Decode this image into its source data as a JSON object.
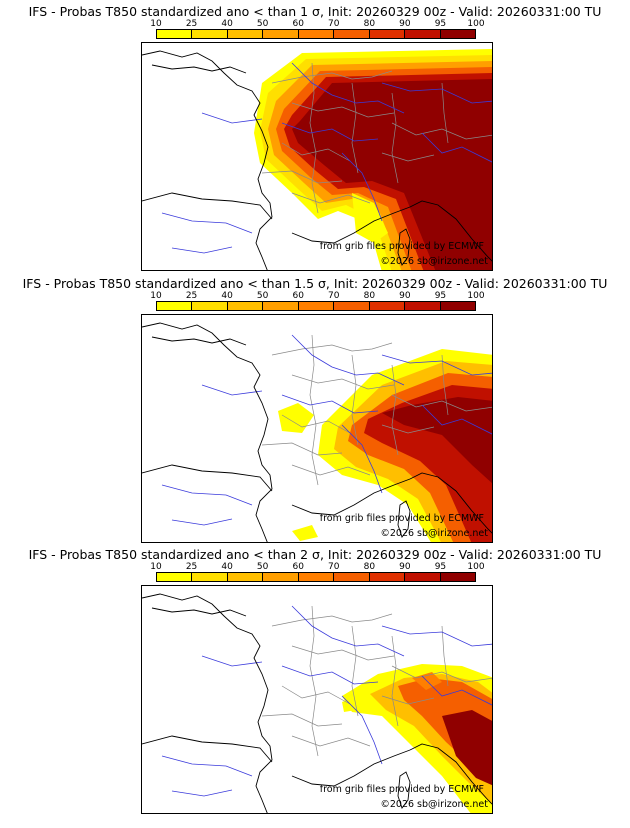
{
  "panels": [
    {
      "title": "IFS - Probas T850  standardized ano < than 1 σ, Init: 20260329 00z - Valid: 20260331:00 TU"
    },
    {
      "title": "IFS - Probas T850  standardized ano < than 1.5 σ, Init: 20260329 00z - Valid: 20260331:00 TU"
    },
    {
      "title": "IFS - Probas T850  standardized ano < than 2 σ, Init: 20260329 00z - Valid: 20260331:00 TU"
    }
  ],
  "colorbar": {
    "ticks": [
      "10",
      "25",
      "40",
      "50",
      "60",
      "70",
      "80",
      "90",
      "95",
      "100"
    ],
    "colors": [
      "#ffff00",
      "#ffdf00",
      "#ffbf00",
      "#ff9f00",
      "#ff7f00",
      "#f55f00",
      "#e03000",
      "#c01000",
      "#900000"
    ]
  },
  "credits": {
    "source": "from grib files provided by ECMWF",
    "copyright": "©2026 sb@irizone.net"
  }
}
